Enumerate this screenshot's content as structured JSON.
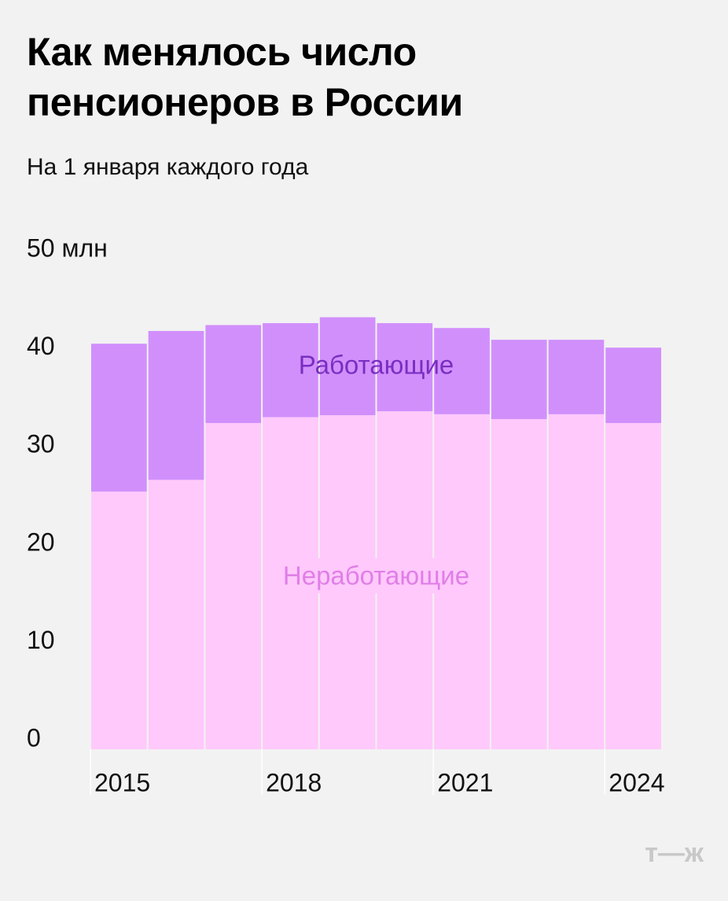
{
  "chart_data": {
    "type": "stacked_bar",
    "title": "Как менялось число пенсионеров в России",
    "subtitle": "На 1 января каждого года",
    "categories": [
      "2015",
      null,
      null,
      "2018",
      null,
      null,
      "2021",
      null,
      null,
      "2024"
    ],
    "series": [
      {
        "name": "Неработающие",
        "color": "#ffc9fb",
        "label_color": "#e07ee8",
        "values": [
          26.3,
          27.5,
          33.3,
          33.9,
          34.1,
          34.5,
          34.2,
          33.7,
          34.2,
          33.3
        ]
      },
      {
        "name": "Работающие",
        "color": "#d18ffc",
        "label_color": "#7a2ec0",
        "values": [
          15.1,
          15.2,
          10.0,
          9.6,
          10.0,
          9.0,
          8.8,
          8.1,
          7.6,
          7.7
        ]
      }
    ],
    "ylim": [
      0,
      50
    ],
    "yticks": [
      0,
      10,
      20,
      30,
      40,
      {
        "value": 50,
        "label": "50 млн"
      }
    ],
    "logo": "т—ж"
  }
}
